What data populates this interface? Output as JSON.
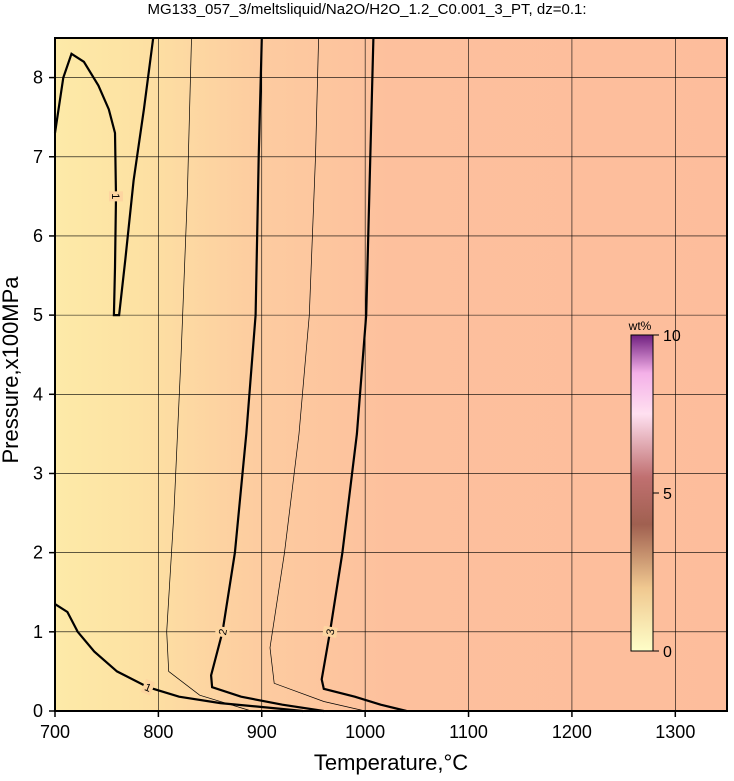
{
  "chart_data": {
    "type": "contour",
    "title": "MG133_057_3/meltsliquid/Na2O/H2O_1.2_C0.001_3_PT, dz=0.1:",
    "x_label": "Temperature,°C",
    "y_label": "Pressure,x100MPa",
    "xlim": [
      700,
      1350
    ],
    "ylim": [
      0,
      8.5
    ],
    "xticks": [
      700,
      800,
      900,
      1000,
      1100,
      1200,
      1300
    ],
    "yticks": [
      0,
      1,
      2,
      3,
      4,
      5,
      6,
      7,
      8
    ],
    "grid": true,
    "contours": [
      {
        "level": 1,
        "x": [
          700,
          708,
          716,
          728,
          742,
          752,
          758,
          759,
          758,
          757,
          762,
          768,
          776,
          786,
          795
        ],
        "y": [
          7.3,
          8.0,
          8.3,
          8.2,
          7.9,
          7.6,
          7.3,
          6.5,
          5.6,
          5.0,
          5.0,
          5.7,
          6.7,
          7.6,
          8.5
        ]
      },
      {
        "level": 1,
        "x": [
          700,
          712,
          722,
          738,
          760,
          790,
          820,
          860,
          900,
          940
        ],
        "y": [
          1.35,
          1.25,
          1.0,
          0.75,
          0.5,
          0.3,
          0.18,
          0.1,
          0.05,
          0.0
        ]
      },
      {
        "level": 1.5,
        "x": [
          832,
          828,
          822,
          815,
          808,
          810,
          840,
          890
        ],
        "y": [
          8.5,
          6.5,
          4.5,
          2.5,
          1.0,
          0.5,
          0.2,
          0.0
        ]
      },
      {
        "level": 2,
        "x": [
          900,
          897,
          894,
          885,
          874,
          862,
          851,
          852,
          880,
          920,
          960
        ],
        "y": [
          8.5,
          7.0,
          5.0,
          3.5,
          2.0,
          1.0,
          0.45,
          0.3,
          0.18,
          0.08,
          0.0
        ]
      },
      {
        "level": 2.5,
        "x": [
          955,
          952,
          946,
          936,
          922,
          908,
          912,
          960,
          1000
        ],
        "y": [
          8.5,
          7.0,
          5.0,
          3.5,
          2.0,
          0.8,
          0.35,
          0.12,
          0.0
        ]
      },
      {
        "level": 3,
        "x": [
          1008,
          1005,
          1001,
          992,
          978,
          966,
          958,
          960,
          990,
          1015,
          1040
        ],
        "y": [
          8.5,
          7.0,
          5.0,
          3.5,
          2.0,
          1.0,
          0.4,
          0.28,
          0.18,
          0.08,
          0.0
        ]
      }
    ],
    "colorbar": {
      "label": "wt%",
      "lim": [
        0,
        10
      ],
      "ticks": [
        0,
        5,
        10
      ]
    }
  }
}
